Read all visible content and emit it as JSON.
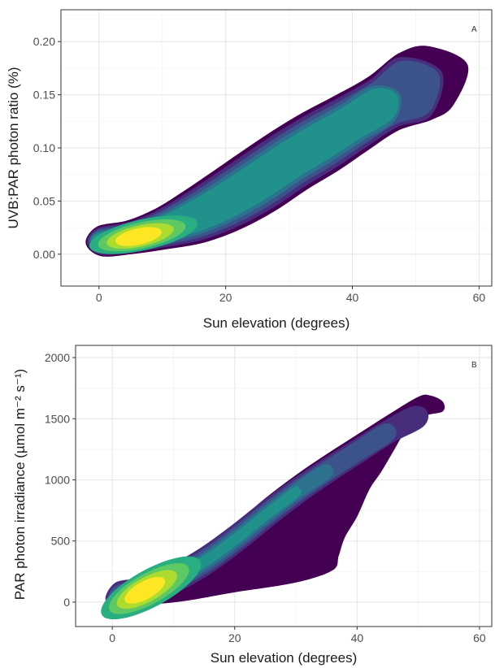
{
  "chart_data": [
    {
      "type": "density",
      "panel_label": "A",
      "title": "",
      "xlabel": "Sun elevation (degrees)",
      "ylabel": "UVB:PAR photon ratio (%)",
      "xlim": [
        -6,
        62
      ],
      "ylim": [
        -0.03,
        0.23
      ],
      "xticks": [
        0,
        20,
        40,
        60
      ],
      "xtick_labels": [
        "0",
        "20",
        "40",
        "60"
      ],
      "yticks": [
        0,
        0.05,
        0.1,
        0.15,
        0.2
      ],
      "ytick_labels": [
        "0.00",
        "0.05",
        "0.10",
        "0.15",
        "0.20"
      ],
      "grid": true,
      "colormap": [
        "#440154",
        "#472d7b",
        "#3b528b",
        "#2c728e",
        "#21918c",
        "#28ae80",
        "#5ec962",
        "#addc30",
        "#fde725"
      ],
      "ridge": [
        {
          "x": 0,
          "y": 0.012
        },
        {
          "x": 5,
          "y": 0.016
        },
        {
          "x": 10,
          "y": 0.024
        },
        {
          "x": 15,
          "y": 0.035
        },
        {
          "x": 20,
          "y": 0.05
        },
        {
          "x": 25,
          "y": 0.068
        },
        {
          "x": 30,
          "y": 0.088
        },
        {
          "x": 35,
          "y": 0.106
        },
        {
          "x": 40,
          "y": 0.124
        },
        {
          "x": 45,
          "y": 0.142
        },
        {
          "x": 50,
          "y": 0.158
        },
        {
          "x": 54,
          "y": 0.168
        }
      ],
      "outer_width": [
        0.014,
        0.016,
        0.02,
        0.026,
        0.03,
        0.032,
        0.032,
        0.032,
        0.03,
        0.029,
        0.035,
        0.03
      ],
      "peak": {
        "x": 6,
        "y": 0.016
      }
    },
    {
      "type": "density",
      "panel_label": "B",
      "title": "",
      "xlabel": "Sun elevation (degrees)",
      "ylabel": "PAR photon irradiance (µmol m⁻² s⁻¹)",
      "xlim": [
        -6,
        62
      ],
      "ylim": [
        -200,
        2100
      ],
      "xticks": [
        0,
        20,
        40,
        60
      ],
      "xtick_labels": [
        "0",
        "20",
        "40",
        "60"
      ],
      "yticks": [
        0,
        500,
        1000,
        1500,
        2000
      ],
      "ytick_labels": [
        "0",
        "500",
        "1000",
        "1500",
        "2000"
      ],
      "grid": true,
      "colormap": [
        "#440154",
        "#472d7b",
        "#3b528b",
        "#2c728e",
        "#21918c",
        "#28ae80",
        "#5ec962",
        "#addc30",
        "#fde725"
      ],
      "ridge": [
        {
          "x": 1,
          "y": 40
        },
        {
          "x": 5,
          "y": 90
        },
        {
          "x": 10,
          "y": 190
        },
        {
          "x": 15,
          "y": 330
        },
        {
          "x": 20,
          "y": 510
        },
        {
          "x": 25,
          "y": 710
        },
        {
          "x": 30,
          "y": 900
        },
        {
          "x": 35,
          "y": 1070
        },
        {
          "x": 40,
          "y": 1230
        },
        {
          "x": 45,
          "y": 1390
        },
        {
          "x": 50,
          "y": 1520
        }
      ],
      "outer_upper": [
        {
          "x": 0,
          "y": 110
        },
        {
          "x": 3,
          "y": 170
        },
        {
          "x": 6,
          "y": 230
        },
        {
          "x": 10,
          "y": 310
        },
        {
          "x": 15,
          "y": 450
        },
        {
          "x": 20,
          "y": 640
        },
        {
          "x": 25,
          "y": 850
        },
        {
          "x": 30,
          "y": 1040
        },
        {
          "x": 35,
          "y": 1210
        },
        {
          "x": 40,
          "y": 1370
        },
        {
          "x": 45,
          "y": 1530
        },
        {
          "x": 50,
          "y": 1680
        },
        {
          "x": 52,
          "y": 1690
        },
        {
          "x": 54,
          "y": 1640
        }
      ],
      "outer_lower": [
        {
          "x": 54,
          "y": 1560
        },
        {
          "x": 51,
          "y": 1520
        },
        {
          "x": 48,
          "y": 1400
        },
        {
          "x": 46,
          "y": 1240
        },
        {
          "x": 44,
          "y": 1070
        },
        {
          "x": 42,
          "y": 920
        },
        {
          "x": 40,
          "y": 700
        },
        {
          "x": 38,
          "y": 530
        },
        {
          "x": 37,
          "y": 380
        },
        {
          "x": 36,
          "y": 260
        },
        {
          "x": 30,
          "y": 160
        },
        {
          "x": 20,
          "y": 80
        },
        {
          "x": 12,
          "y": 10
        },
        {
          "x": 6,
          "y": -20
        },
        {
          "x": 2,
          "y": -20
        },
        {
          "x": 0,
          "y": 10
        }
      ],
      "inner_width": 120,
      "peak": {
        "x": 5,
        "y": 90
      }
    }
  ]
}
